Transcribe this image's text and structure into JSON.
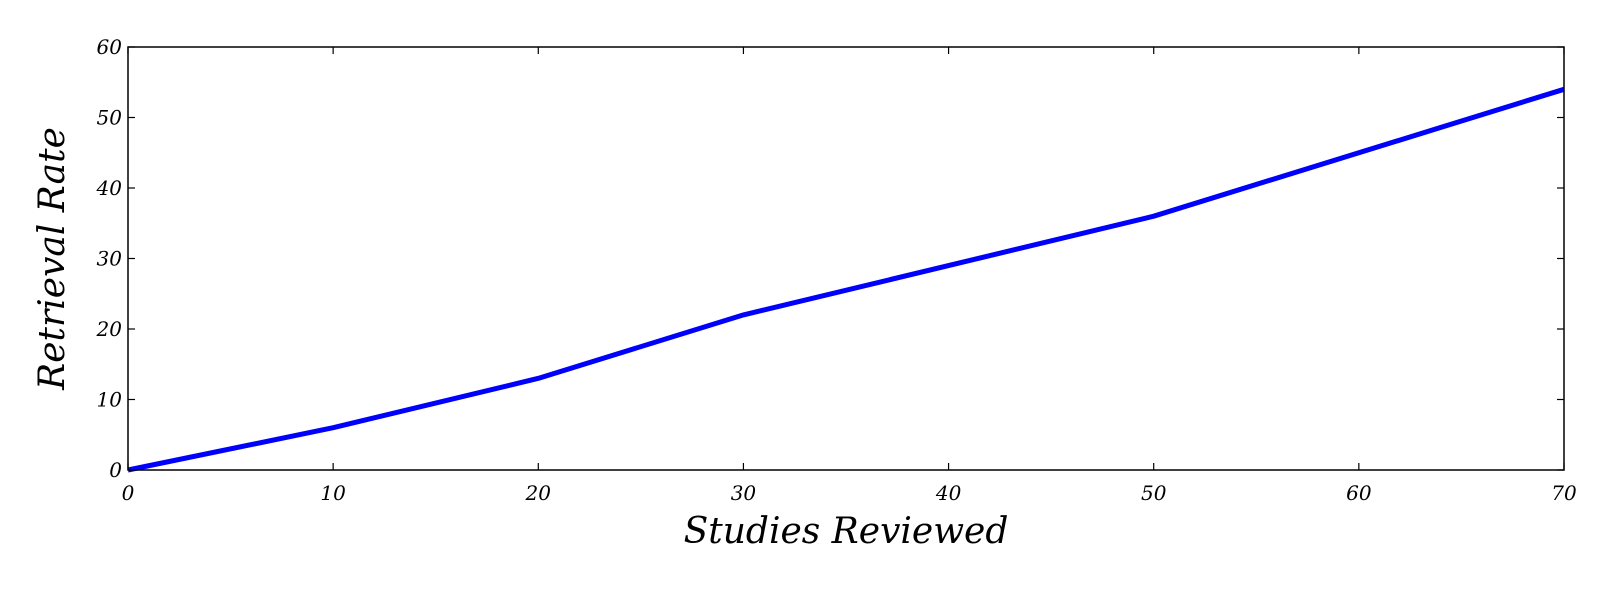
{
  "chart_data": {
    "type": "line",
    "title": "",
    "xlabel": "Studies Reviewed",
    "ylabel": "Retrieval Rate",
    "xlim": [
      0,
      70
    ],
    "ylim": [
      0,
      60
    ],
    "xticks": [
      0,
      10,
      20,
      30,
      40,
      50,
      60,
      70
    ],
    "yticks": [
      0,
      10,
      20,
      30,
      40,
      50,
      60
    ],
    "grid": false,
    "legend": "none",
    "series": [
      {
        "color": "#0000ff",
        "x": [
          0,
          10,
          20,
          30,
          50,
          70
        ],
        "y": [
          0,
          6,
          13,
          22,
          36,
          54
        ]
      }
    ]
  }
}
